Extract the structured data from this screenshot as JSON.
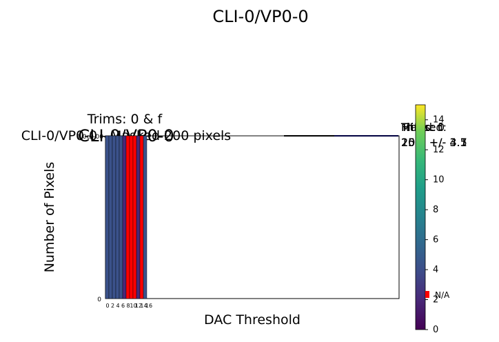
{
  "chart_data": {
    "type": "bar",
    "title": "CLI-0/VP0-0",
    "subtitle_lines": [
      "Trims: 0 & f",
      "CLI-0/VP0-0 - Masked 200 pixels"
    ],
    "overlay_title": "CLI-0/VP0-0",
    "xlabel": "DAC Threshold",
    "ylabel": "Number of Pixels",
    "y_tick_zero": "0",
    "y_top_label": "1.0e+00",
    "x_tick_labels": [
      "0",
      "2",
      "4",
      "6",
      "8",
      "10",
      "12",
      "14",
      "16"
    ],
    "bars": [
      {
        "index": 0,
        "color": "#3b528b"
      },
      {
        "index": 1,
        "color": "#3b528b"
      },
      {
        "index": 2,
        "color": "#3b528b"
      },
      {
        "index": 3,
        "color": "#3b528b"
      },
      {
        "index": 4,
        "color": "#3b528b"
      },
      {
        "index": 5,
        "color": "#482878"
      },
      {
        "index": 6,
        "color": "#ff0000"
      },
      {
        "index": 7,
        "color": "#ff0000"
      },
      {
        "index": 8,
        "color": "#ff0000"
      },
      {
        "index": 9,
        "color": "#482878"
      },
      {
        "index": 10,
        "color": "#ff0000"
      },
      {
        "index": 11,
        "color": "#3b528b"
      }
    ],
    "ylim": [
      0,
      1
    ],
    "legend_texts": [
      "Trims: f",
      "Trims: 0",
      "Masked:",
      "Fitted:"
    ],
    "legend_values": [
      "20.8 +/- 3.5",
      "15.0 +/- 4.1",
      "200",
      "25.3 +/- 3.7"
    ],
    "colorbar": {
      "min": 0,
      "max": 15,
      "ticks": [
        "0",
        "2",
        "4",
        "6",
        "8",
        "10",
        "12",
        "14"
      ],
      "na_label": "N/A"
    },
    "colors": {
      "masked": "#ff0000",
      "trim_f": "#ff0000",
      "trim_0": "#0000ff",
      "fit": "#000080"
    }
  }
}
